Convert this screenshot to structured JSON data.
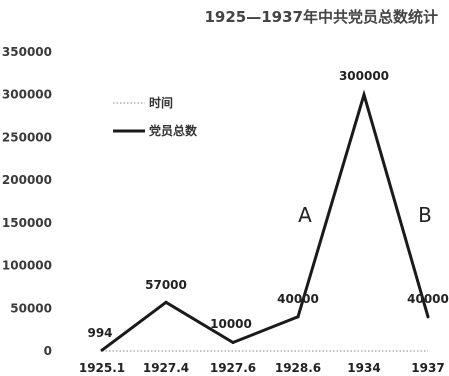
{
  "chart_data": {
    "type": "line",
    "title": "1925—1937年中共党员总数统计",
    "categories": [
      "1925.1",
      "1927.4",
      "1927.6",
      "1928.6",
      "1934",
      "1937"
    ],
    "series": [
      {
        "name": "时间",
        "values": [
          0,
          0,
          0,
          0,
          0,
          0
        ],
        "style": "dotted",
        "color": "#888888"
      },
      {
        "name": "党员总数",
        "values": [
          994,
          57000,
          10000,
          40000,
          300000,
          40000
        ],
        "style": "solid",
        "color": "#1a1a1a"
      }
    ],
    "data_labels": [
      "994",
      "57000",
      "10000",
      "40000",
      "300000",
      "40000"
    ],
    "y_ticks": [
      "0",
      "50000",
      "100000",
      "150000",
      "200000",
      "250000",
      "300000",
      "350000"
    ],
    "ylim": [
      0,
      350000
    ],
    "grid": false,
    "legend_position": "upper-left",
    "annotations": [
      {
        "text": "A",
        "near_category": "1928.6"
      },
      {
        "text": "B",
        "near_category": "1937"
      }
    ]
  }
}
